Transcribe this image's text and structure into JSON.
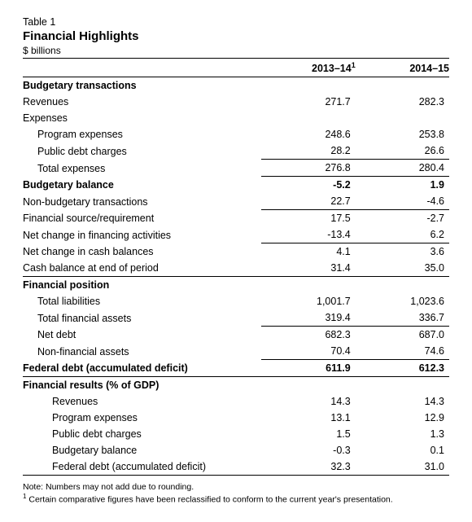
{
  "header": {
    "table_label": "Table 1",
    "title": "Financial Highlights",
    "unit": "$ billions"
  },
  "columns": {
    "col1": "2013–14",
    "col1_sup": "1",
    "col2": "2014–15"
  },
  "sections": {
    "budgetary_transactions": {
      "heading": "Budgetary transactions",
      "revenues": {
        "label": "Revenues",
        "c1": "271.7",
        "c2": "282.3"
      },
      "expenses_label": "Expenses",
      "program_expenses": {
        "label": "Program expenses",
        "c1": "248.6",
        "c2": "253.8"
      },
      "public_debt_charges": {
        "label": "Public debt charges",
        "c1": "28.2",
        "c2": "26.6"
      },
      "total_expenses": {
        "label": "Total expenses",
        "c1": "276.8",
        "c2": "280.4"
      }
    },
    "budgetary_balance": {
      "label": "Budgetary balance",
      "c1": "-5.2",
      "c2": "1.9"
    },
    "non_budgetary": {
      "label": "Non-budgetary transactions",
      "c1": "22.7",
      "c2": "-4.6"
    },
    "fin_source_req": {
      "label": "Financial source/requirement",
      "c1": "17.5",
      "c2": "-2.7"
    },
    "net_change_fin_act": {
      "label": "Net change in financing activities",
      "c1": "-13.4",
      "c2": "6.2"
    },
    "net_change_cash": {
      "label": "Net change in cash balances",
      "c1": "4.1",
      "c2": "3.6"
    },
    "cash_balance_end": {
      "label": "Cash balance at end of period",
      "c1": "31.4",
      "c2": "35.0"
    },
    "financial_position": {
      "heading": "Financial position",
      "total_liabilities": {
        "label": "Total liabilities",
        "c1": "1,001.7",
        "c2": "1,023.6"
      },
      "total_fin_assets": {
        "label": "Total financial assets",
        "c1": "319.4",
        "c2": "336.7"
      },
      "net_debt": {
        "label": "Net debt",
        "c1": "682.3",
        "c2": "687.0"
      },
      "non_fin_assets": {
        "label": "Non-financial assets",
        "c1": "70.4",
        "c2": "74.6"
      }
    },
    "federal_debt": {
      "label": "Federal debt (accumulated deficit)",
      "c1": "611.9",
      "c2": "612.3"
    },
    "fin_results_gdp": {
      "heading": "Financial results (% of GDP)",
      "revenues": {
        "label": "Revenues",
        "c1": "14.3",
        "c2": "14.3"
      },
      "program_expenses": {
        "label": "Program expenses",
        "c1": "13.1",
        "c2": "12.9"
      },
      "public_debt_charges": {
        "label": "Public debt charges",
        "c1": "1.5",
        "c2": "1.3"
      },
      "budgetary_balance": {
        "label": "Budgetary balance",
        "c1": "-0.3",
        "c2": "0.1"
      },
      "federal_debt": {
        "label": "Federal debt (accumulated deficit)",
        "c1": "32.3",
        "c2": "31.0"
      }
    }
  },
  "notes": {
    "note": "Note: Numbers may not add due to rounding.",
    "footnote1_sup": "1",
    "footnote1": " Certain comparative figures have been reclassified to conform to the current year's presentation."
  }
}
